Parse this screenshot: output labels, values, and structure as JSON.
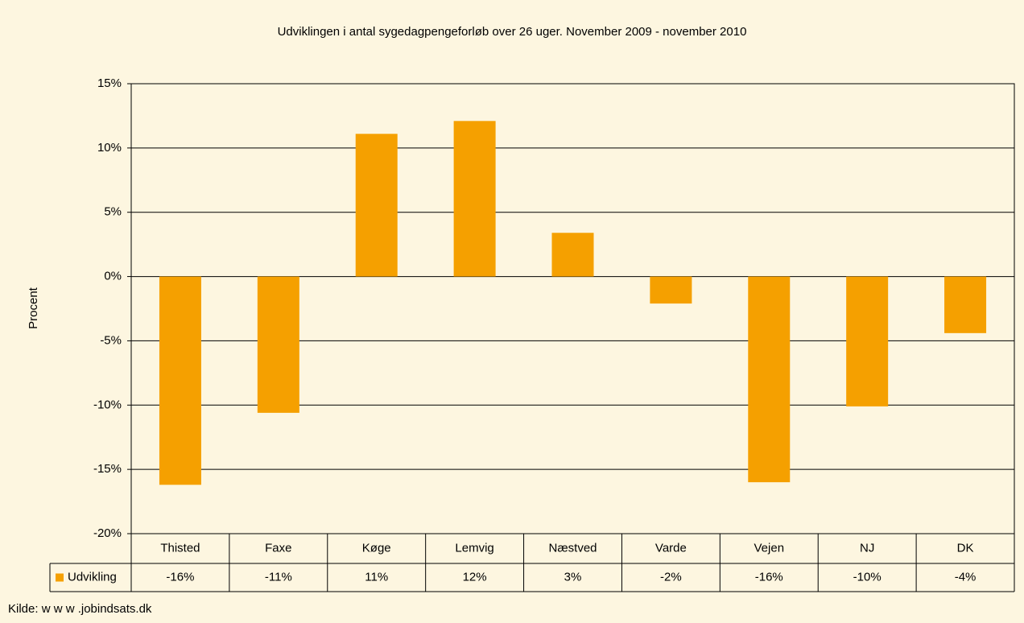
{
  "chart_data": {
    "type": "bar",
    "title": "Udviklingen i antal sygedagpengeforløb over 26 uger. November 2009 - november 2010",
    "y_label": "Procent",
    "source": "Kilde: w w w .jobindsats.dk",
    "categories": [
      "Thisted",
      "Faxe",
      "Køge",
      "Lemvig",
      "Næstved",
      "Varde",
      "Vejen",
      "NJ",
      "DK"
    ],
    "series": [
      {
        "name": "Udvikling",
        "color": "#f5a000",
        "values": [
          -16.2,
          -10.6,
          11.1,
          12.1,
          3.4,
          -2.1,
          -16.0,
          -10.1,
          -4.4
        ],
        "value_labels": [
          "-16%",
          "-11%",
          "11%",
          "12%",
          "3%",
          "-2%",
          "-16%",
          "-10%",
          "-4%"
        ]
      }
    ],
    "ylim": [
      -20,
      15
    ],
    "yticks": [
      {
        "value": -20,
        "label": "-20%"
      },
      {
        "value": -15,
        "label": "-15%"
      },
      {
        "value": -10,
        "label": "-10%"
      },
      {
        "value": -5,
        "label": "-5%"
      },
      {
        "value": 0,
        "label": "0%"
      },
      {
        "value": 5,
        "label": "5%"
      },
      {
        "value": 10,
        "label": "10%"
      },
      {
        "value": 15,
        "label": "15%"
      }
    ],
    "grid": true
  }
}
